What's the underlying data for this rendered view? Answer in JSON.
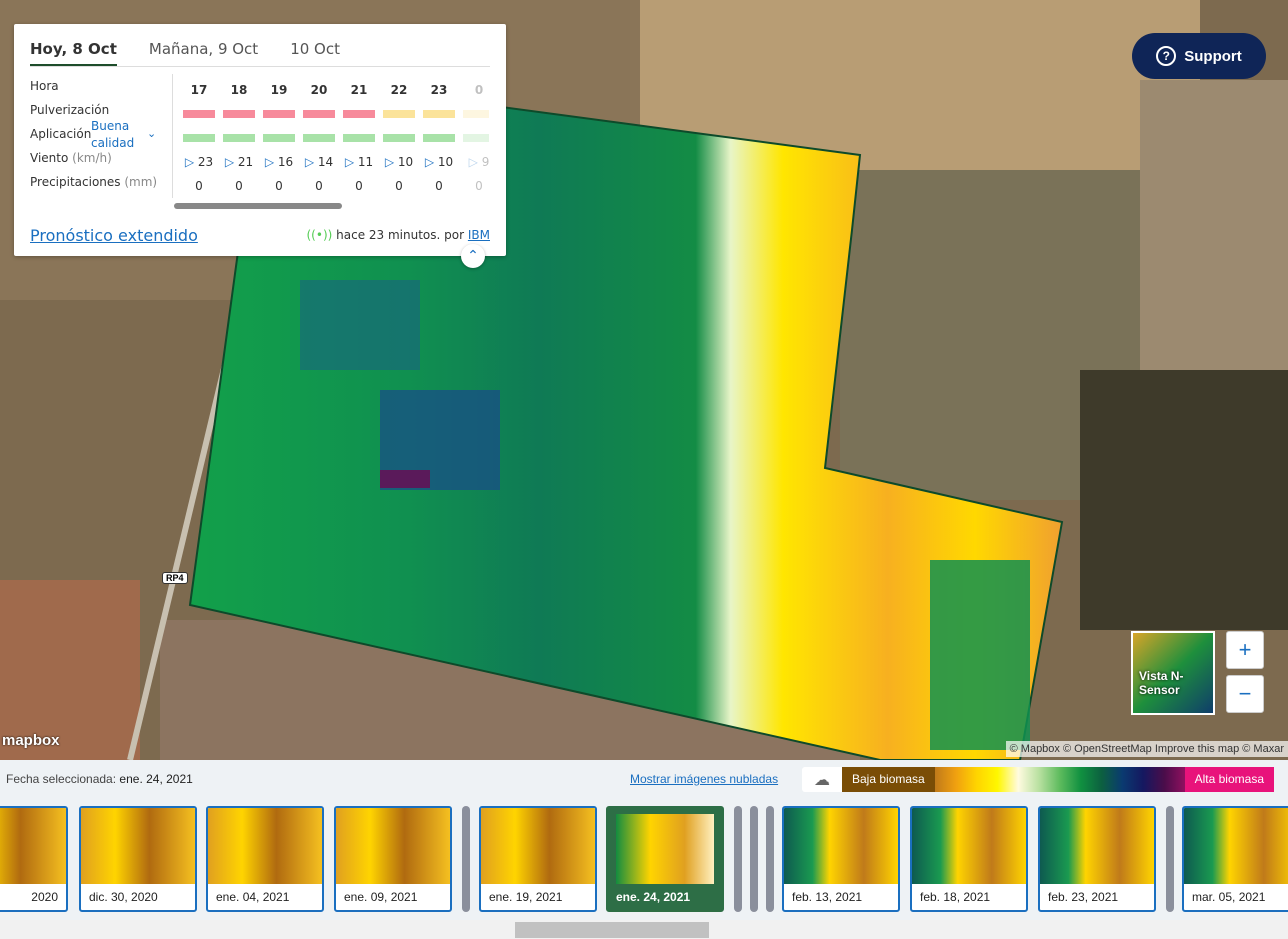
{
  "weather": {
    "tabs": [
      "Hoy, 8 Oct",
      "Mañana, 9 Oct",
      "10 Oct"
    ],
    "rows": {
      "hora": "Hora",
      "pulverizacion": "Pulverización",
      "aplicacion": "Aplicación",
      "aplicacion_select": "Buena calidad",
      "viento": "Viento",
      "viento_unit": "(km/h)",
      "precip": "Precipitaciones",
      "precip_unit": "(mm)"
    },
    "hours": [
      "17",
      "18",
      "19",
      "20",
      "21",
      "22",
      "23",
      "0"
    ],
    "pulverizacion_colors": [
      "#f78a9b",
      "#f78a9b",
      "#f78a9b",
      "#f78a9b",
      "#f78a9b",
      "#fbe39a",
      "#fbe39a",
      "#fdf6e0"
    ],
    "aplicacion_colors": [
      "#a8e2a8",
      "#a8e2a8",
      "#a8e2a8",
      "#a8e2a8",
      "#a8e2a8",
      "#a8e2a8",
      "#a8e2a8",
      "#e3f5e3"
    ],
    "wind": [
      "23",
      "21",
      "16",
      "14",
      "11",
      "10",
      "10",
      "9"
    ],
    "precip": [
      "0",
      "0",
      "0",
      "0",
      "0",
      "0",
      "0",
      "0"
    ],
    "extended_link": "Pronóstico extendido",
    "updated": "hace 23 minutos. por",
    "provider": "IBM"
  },
  "support": "Support",
  "map": {
    "mini_label": "Vista N-Sensor",
    "zoom_in": "+",
    "zoom_out": "−",
    "logo": "mapbox",
    "attribution": "© Mapbox © OpenStreetMap Improve this map © Maxar",
    "road": "RP4"
  },
  "timeline": {
    "selected_label": "Fecha seleccionada:",
    "selected_date": "ene. 24, 2021",
    "cloud_link": "Mostrar imágenes nubladas",
    "legend_low": "Baja biomasa",
    "legend_high": "Alta biomasa",
    "dates": [
      "2020",
      "dic. 30, 2020",
      "ene. 04, 2021",
      "ene. 09, 2021",
      "ene. 19, 2021",
      "ene. 24, 2021",
      "feb. 13, 2021",
      "feb. 18, 2021",
      "feb. 23, 2021",
      "mar. 05, 2021"
    ]
  }
}
